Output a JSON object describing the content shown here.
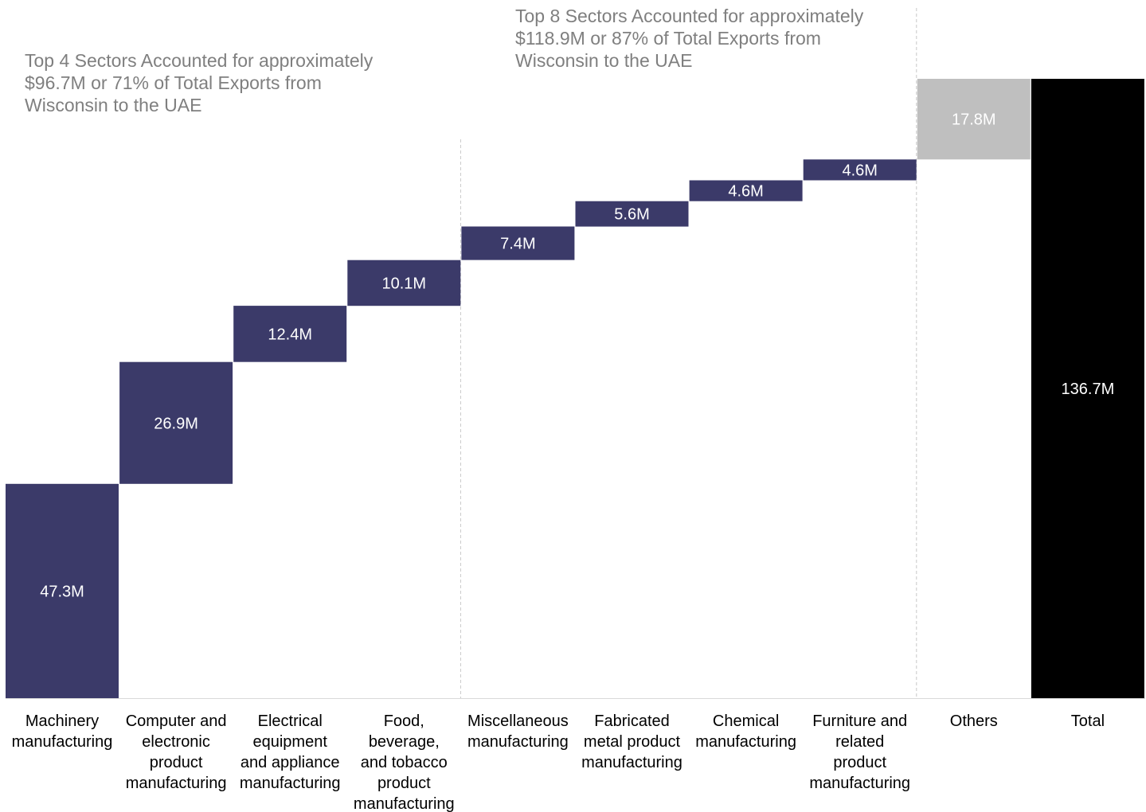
{
  "chart_data": {
    "type": "bar",
    "subtype": "waterfall",
    "categories": [
      [
        "Machinery",
        "manufacturing"
      ],
      [
        "Computer and",
        "electronic",
        "product",
        "manufacturing"
      ],
      [
        "Electrical",
        "equipment",
        "and appliance",
        "manufacturing"
      ],
      [
        "Food,",
        "beverage,",
        "and tobacco",
        "product",
        "manufacturing"
      ],
      [
        "Miscellaneous",
        "manufacturing"
      ],
      [
        "Fabricated",
        "metal product",
        "manufacturing"
      ],
      [
        "Chemical",
        "manufacturing"
      ],
      [
        "Furniture and",
        "related",
        "product",
        "manufacturing"
      ],
      [
        "Others"
      ],
      [
        "Total"
      ]
    ],
    "values": [
      47.3,
      26.9,
      12.4,
      10.1,
      7.4,
      5.6,
      4.6,
      4.6,
      17.8,
      136.7
    ],
    "data_labels": [
      "47.3M",
      "26.9M",
      "12.4M",
      "10.1M",
      "7.4M",
      "5.6M",
      "4.6M",
      "4.6M",
      "17.8M",
      "136.7M"
    ],
    "bar_kinds": [
      "step",
      "step",
      "step",
      "step",
      "step",
      "step",
      "step",
      "step",
      "others",
      "total"
    ],
    "colors": {
      "step": "#3b3a69",
      "others": "#bfbfbf",
      "total": "#000000",
      "label_light": "#ffffff",
      "axis_text": "#000000",
      "annotation_text": "#7f7f7f",
      "divider": "#c8c8c8",
      "axis_line": "#d9d9d9"
    },
    "ylim": [
      0,
      136.7
    ],
    "grid": false,
    "legend": "none",
    "title": "",
    "xlabel": "",
    "ylabel": "",
    "dividers_after_category_index": [
      3,
      7
    ],
    "annotations": [
      {
        "id": "top4",
        "lines": [
          "Top 4 Sectors Accounted for approximately",
          "$96.7M or 71% of Total Exports from",
          "Wisconsin to the UAE"
        ]
      },
      {
        "id": "top8",
        "lines": [
          "Top 8 Sectors Accounted for approximately",
          "$118.9M or 87% of Total Exports from",
          "Wisconsin to the UAE"
        ]
      }
    ]
  }
}
